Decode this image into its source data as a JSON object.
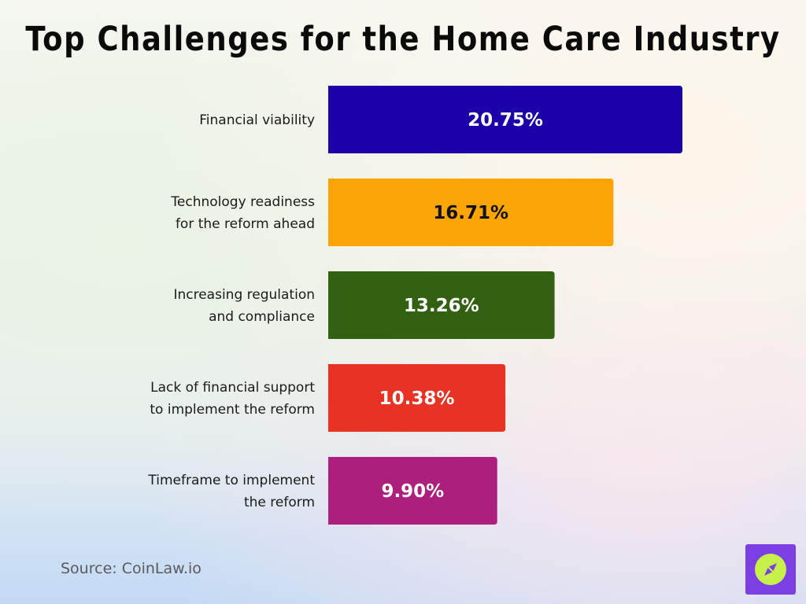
{
  "title": "Top Challenges for the Home Care Industry",
  "source": "Source: CoinLaw.io",
  "colors": {
    "background_bottom": "#c3daf4",
    "logo_bg": "#7b3fe4",
    "logo_circle": "#c8f04a"
  },
  "logo_icon": "compass-icon",
  "chart_data": {
    "type": "bar",
    "orientation": "horizontal",
    "title": "Top Challenges for the Home Care Industry",
    "xlabel": "",
    "ylabel": "",
    "xlim": [
      0,
      20.75
    ],
    "grid": false,
    "categories": [
      [
        "Financial viability"
      ],
      [
        "Technology readiness",
        "for the reform ahead"
      ],
      [
        "Increasing regulation",
        "and compliance"
      ],
      [
        "Lack of financial support",
        "to implement the reform"
      ],
      [
        "Timeframe to implement",
        "the reform"
      ]
    ],
    "values": [
      20.75,
      16.71,
      13.26,
      10.38,
      9.9
    ],
    "value_labels": [
      "20.75%",
      "16.71%",
      "13.26%",
      "10.38%",
      "9.90%"
    ],
    "bar_colors": [
      "#1c00a8",
      "#fca505",
      "#336112",
      "#e83224",
      "#ad1f7c"
    ],
    "value_label_colors": [
      "#ffffff",
      "#111111",
      "#ffffff",
      "#ffffff",
      "#ffffff"
    ]
  }
}
